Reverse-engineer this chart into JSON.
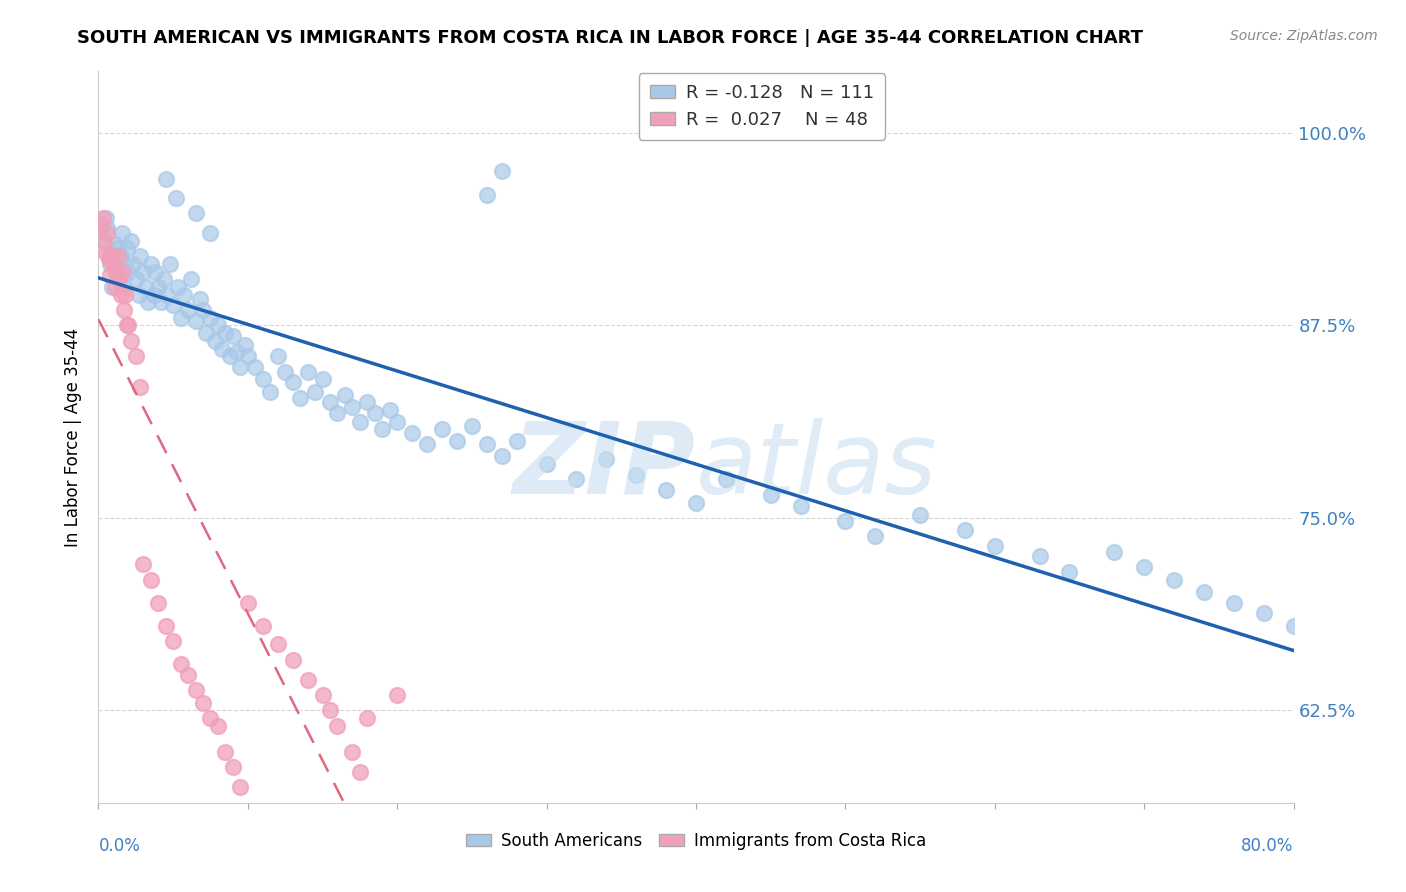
{
  "title": "SOUTH AMERICAN VS IMMIGRANTS FROM COSTA RICA IN LABOR FORCE | AGE 35-44 CORRELATION CHART",
  "source": "Source: ZipAtlas.com",
  "ylabel": "In Labor Force | Age 35-44",
  "right_yticks": [
    0.625,
    0.75,
    0.875,
    1.0
  ],
  "right_yticklabels": [
    "62.5%",
    "75.0%",
    "87.5%",
    "100.0%"
  ],
  "xmin": 0.0,
  "xmax": 0.8,
  "ymin": 0.565,
  "ymax": 1.04,
  "blue_R": -0.128,
  "blue_N": 111,
  "pink_R": 0.027,
  "pink_N": 48,
  "blue_color": "#A8C8E8",
  "pink_color": "#F0A0B8",
  "blue_trend_color": "#2060B0",
  "pink_trend_color": "#E06880",
  "legend_label_blue": "South Americans",
  "legend_label_pink": "Immigrants from Costa Rica",
  "tick_label_color": "#4080C0",
  "grid_color": "#CCCCCC",
  "blue_x": [
    0.003,
    0.005,
    0.006,
    0.007,
    0.008,
    0.009,
    0.01,
    0.011,
    0.012,
    0.013,
    0.014,
    0.015,
    0.016,
    0.017,
    0.018,
    0.019,
    0.02,
    0.022,
    0.023,
    0.025,
    0.027,
    0.028,
    0.03,
    0.032,
    0.033,
    0.035,
    0.037,
    0.038,
    0.04,
    0.042,
    0.044,
    0.046,
    0.048,
    0.05,
    0.053,
    0.055,
    0.057,
    0.06,
    0.062,
    0.065,
    0.068,
    0.07,
    0.072,
    0.075,
    0.078,
    0.08,
    0.083,
    0.085,
    0.088,
    0.09,
    0.093,
    0.095,
    0.098,
    0.1,
    0.105,
    0.11,
    0.115,
    0.12,
    0.125,
    0.13,
    0.135,
    0.14,
    0.145,
    0.15,
    0.155,
    0.16,
    0.165,
    0.17,
    0.175,
    0.18,
    0.185,
    0.19,
    0.195,
    0.2,
    0.21,
    0.22,
    0.23,
    0.24,
    0.25,
    0.26,
    0.27,
    0.28,
    0.3,
    0.32,
    0.34,
    0.36,
    0.38,
    0.4,
    0.42,
    0.45,
    0.47,
    0.5,
    0.52,
    0.55,
    0.58,
    0.6,
    0.63,
    0.65,
    0.68,
    0.7,
    0.72,
    0.74,
    0.76,
    0.78,
    0.8,
    0.26,
    0.27,
    0.045,
    0.052,
    0.065,
    0.075
  ],
  "blue_y": [
    0.93,
    0.945,
    0.938,
    0.922,
    0.915,
    0.9,
    0.918,
    0.928,
    0.91,
    0.925,
    0.905,
    0.92,
    0.935,
    0.9,
    0.915,
    0.925,
    0.91,
    0.93,
    0.915,
    0.905,
    0.895,
    0.92,
    0.91,
    0.9,
    0.89,
    0.915,
    0.895,
    0.91,
    0.9,
    0.89,
    0.905,
    0.895,
    0.915,
    0.888,
    0.9,
    0.88,
    0.895,
    0.885,
    0.905,
    0.878,
    0.892,
    0.885,
    0.87,
    0.88,
    0.865,
    0.875,
    0.86,
    0.87,
    0.855,
    0.868,
    0.858,
    0.848,
    0.862,
    0.855,
    0.848,
    0.84,
    0.832,
    0.855,
    0.845,
    0.838,
    0.828,
    0.845,
    0.832,
    0.84,
    0.825,
    0.818,
    0.83,
    0.822,
    0.812,
    0.825,
    0.818,
    0.808,
    0.82,
    0.812,
    0.805,
    0.798,
    0.808,
    0.8,
    0.81,
    0.798,
    0.79,
    0.8,
    0.785,
    0.775,
    0.788,
    0.778,
    0.768,
    0.76,
    0.775,
    0.765,
    0.758,
    0.748,
    0.738,
    0.752,
    0.742,
    0.732,
    0.725,
    0.715,
    0.728,
    0.718,
    0.71,
    0.702,
    0.695,
    0.688,
    0.68,
    0.96,
    0.975,
    0.97,
    0.958,
    0.948,
    0.935
  ],
  "pink_x": [
    0.002,
    0.003,
    0.004,
    0.005,
    0.006,
    0.007,
    0.008,
    0.009,
    0.01,
    0.011,
    0.012,
    0.013,
    0.014,
    0.015,
    0.016,
    0.017,
    0.018,
    0.019,
    0.02,
    0.022,
    0.025,
    0.028,
    0.03,
    0.035,
    0.04,
    0.045,
    0.05,
    0.055,
    0.06,
    0.065,
    0.07,
    0.075,
    0.08,
    0.085,
    0.09,
    0.095,
    0.1,
    0.11,
    0.12,
    0.13,
    0.14,
    0.15,
    0.155,
    0.16,
    0.17,
    0.175,
    0.18,
    0.2
  ],
  "pink_y": [
    0.94,
    0.945,
    0.93,
    0.922,
    0.935,
    0.918,
    0.908,
    0.92,
    0.915,
    0.9,
    0.91,
    0.92,
    0.905,
    0.895,
    0.91,
    0.885,
    0.895,
    0.875,
    0.875,
    0.865,
    0.855,
    0.835,
    0.72,
    0.71,
    0.695,
    0.68,
    0.67,
    0.655,
    0.648,
    0.638,
    0.63,
    0.62,
    0.615,
    0.598,
    0.588,
    0.575,
    0.695,
    0.68,
    0.668,
    0.658,
    0.645,
    0.635,
    0.625,
    0.615,
    0.598,
    0.585,
    0.62,
    0.635
  ]
}
